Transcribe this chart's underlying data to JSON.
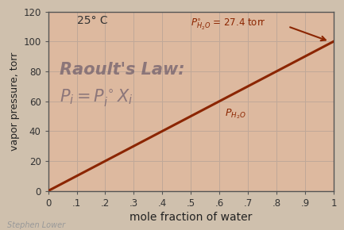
{
  "bg_outer": "#cfc0ad",
  "bg_inner": "#ddb99f",
  "grid_color": "#c0a898",
  "line_color": "#8b2500",
  "text_color": "#6a5a6a",
  "annotation_color": "#8b2500",
  "title_temp": "25° C",
  "xlabel": "mole fraction of water",
  "ylabel": "vapor pressure, torr",
  "xlim": [
    0,
    1.0
  ],
  "ylim": [
    0,
    120
  ],
  "xticks": [
    0,
    0.1,
    0.2,
    0.3,
    0.4,
    0.5,
    0.6,
    0.7,
    0.8,
    0.9,
    1.0
  ],
  "xticklabels": [
    "0",
    ".1",
    ".2",
    ".3",
    ".4",
    ".5",
    ".6",
    ".7",
    ".8",
    ".9",
    "1"
  ],
  "yticks": [
    0,
    20,
    40,
    60,
    80,
    100,
    120
  ],
  "line_x": [
    0,
    1.0
  ],
  "line_y": [
    0,
    100
  ],
  "line_label": "$P_{H_2O}$",
  "raoult_line1": "Raoult's Law:",
  "raoult_line2": "$P_i = P^\\circ_i X_i$",
  "credit": "Stephen Lower"
}
